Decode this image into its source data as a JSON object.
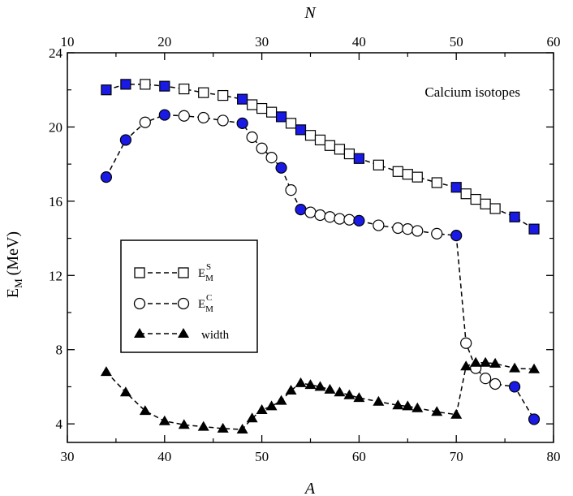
{
  "chart_data": {
    "type": "line",
    "title": "",
    "annotation": "Calcium isotopes",
    "xlabel": "A",
    "x2label": "N",
    "ylabel_main": "E",
    "ylabel_sub": "M",
    "ylabel_unit": "(MeV)",
    "xlim": [
      30,
      80
    ],
    "x2lim": [
      10,
      60
    ],
    "ylim": [
      3,
      24
    ],
    "xticks": [
      30,
      40,
      50,
      60,
      70,
      80
    ],
    "x2ticks": [
      10,
      20,
      30,
      40,
      50,
      60
    ],
    "yticks": [
      4,
      8,
      12,
      16,
      20,
      24
    ],
    "grid": false,
    "legend_position": "middle-left",
    "fill_color": "#1a1ae6",
    "series": [
      {
        "name": "E_M^S",
        "legend_main": "E",
        "legend_sub": "M",
        "legend_sup": "S",
        "marker": "square",
        "line": "dashed",
        "x": [
          34,
          36,
          38,
          40,
          42,
          44,
          46,
          48,
          49,
          50,
          51,
          52,
          53,
          54,
          55,
          56,
          57,
          58,
          59,
          60,
          62,
          64,
          65,
          66,
          68,
          70,
          71,
          72,
          73,
          74,
          76,
          78
        ],
        "y": [
          22.0,
          22.3,
          22.3,
          22.2,
          22.05,
          21.85,
          21.7,
          21.5,
          21.2,
          21.0,
          20.8,
          20.55,
          20.2,
          19.85,
          19.55,
          19.3,
          19.0,
          18.8,
          18.55,
          18.3,
          17.95,
          17.6,
          17.45,
          17.3,
          17.0,
          16.75,
          16.4,
          16.1,
          15.85,
          15.6,
          15.15,
          14.5
        ],
        "filled": [
          true,
          true,
          false,
          true,
          false,
          false,
          false,
          true,
          false,
          false,
          false,
          true,
          false,
          true,
          false,
          false,
          false,
          false,
          false,
          true,
          false,
          false,
          false,
          false,
          false,
          true,
          false,
          false,
          false,
          false,
          true,
          true
        ]
      },
      {
        "name": "E_M^C",
        "legend_main": "E",
        "legend_sub": "M",
        "legend_sup": "C",
        "marker": "circle",
        "line": "dashed",
        "x": [
          34,
          36,
          38,
          40,
          42,
          44,
          46,
          48,
          49,
          50,
          51,
          52,
          53,
          54,
          55,
          56,
          57,
          58,
          59,
          60,
          62,
          64,
          65,
          66,
          68,
          70,
          71,
          72,
          73,
          74,
          76,
          78
        ],
        "y": [
          17.3,
          19.3,
          20.25,
          20.65,
          20.6,
          20.5,
          20.35,
          20.2,
          19.45,
          18.85,
          18.35,
          17.8,
          16.6,
          15.55,
          15.4,
          15.25,
          15.15,
          15.05,
          15.0,
          14.95,
          14.7,
          14.55,
          14.5,
          14.4,
          14.25,
          14.15,
          8.35,
          7.0,
          6.45,
          6.15,
          6.0,
          4.25
        ],
        "filled": [
          true,
          true,
          false,
          true,
          false,
          false,
          false,
          true,
          false,
          false,
          false,
          true,
          false,
          true,
          false,
          false,
          false,
          false,
          false,
          true,
          false,
          false,
          false,
          false,
          false,
          true,
          false,
          false,
          false,
          false,
          true,
          true
        ]
      },
      {
        "name": "width",
        "legend_main": "width",
        "marker": "triangle",
        "line": "dashed",
        "x": [
          34,
          36,
          38,
          40,
          42,
          44,
          46,
          48,
          49,
          50,
          51,
          52,
          53,
          54,
          55,
          56,
          57,
          58,
          59,
          60,
          62,
          64,
          65,
          66,
          68,
          70,
          71,
          72,
          73,
          74,
          76,
          78
        ],
        "y": [
          6.8,
          5.7,
          4.7,
          4.15,
          3.95,
          3.85,
          3.75,
          3.7,
          4.3,
          4.75,
          4.95,
          5.25,
          5.8,
          6.2,
          6.1,
          6.0,
          5.85,
          5.7,
          5.55,
          5.4,
          5.2,
          5.0,
          4.95,
          4.85,
          4.65,
          4.5,
          7.1,
          7.3,
          7.3,
          7.25,
          7.0,
          6.95
        ],
        "filled": [
          true,
          true,
          true,
          true,
          true,
          true,
          true,
          true,
          true,
          true,
          true,
          true,
          true,
          true,
          true,
          true,
          true,
          true,
          true,
          true,
          true,
          true,
          true,
          true,
          true,
          true,
          true,
          true,
          true,
          true,
          true,
          true
        ]
      }
    ]
  }
}
